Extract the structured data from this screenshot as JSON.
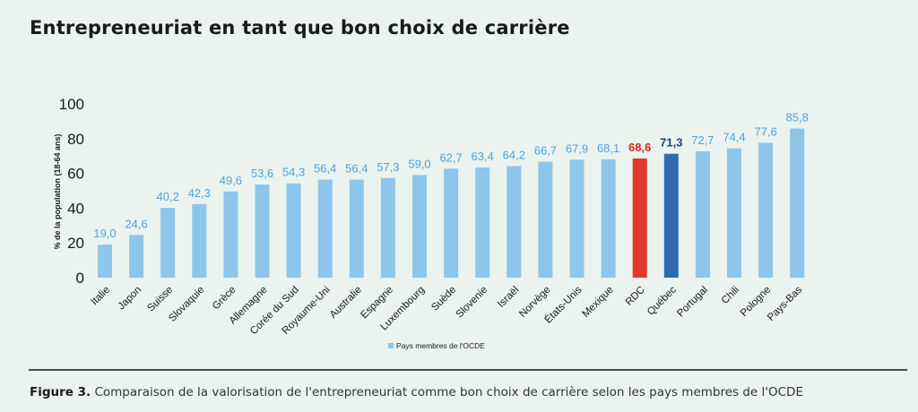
{
  "title": "Entrepreneuriat en tant que bon choix de carrière",
  "caption": {
    "label": "Figure 3.",
    "text": " Comparaison de la valorisation de l'entrepreneuriat comme bon choix de carrière selon les pays membres de l'OCDE"
  },
  "chart_data": {
    "type": "bar",
    "ylabel": "% de la population (18-64 ans)",
    "ylim": [
      0,
      100
    ],
    "yticks": [
      0,
      20,
      40,
      60,
      80,
      100
    ],
    "grid": false,
    "legend": {
      "position": "bottom-center",
      "label": "Pays membres de l'OCDE"
    },
    "categories": [
      "Italie",
      "Japon",
      "Suisse",
      "Slovaquie",
      "Grèce",
      "Allemagne",
      "Corée du Sud",
      "Royaume-Uni",
      "Australie",
      "Espagne",
      "Luxembourg",
      "Suède",
      "Slovenie",
      "Israël",
      "Norvège",
      "États-Unis",
      "Mexique",
      "RDC",
      "Québec",
      "Portugal",
      "Chili",
      "Pologne",
      "Pays-Bas"
    ],
    "values": [
      19.0,
      24.6,
      40.2,
      42.3,
      49.6,
      53.6,
      54.3,
      56.4,
      56.4,
      57.3,
      59.0,
      62.7,
      63.4,
      64.2,
      66.7,
      67.9,
      68.1,
      68.6,
      71.3,
      72.7,
      74.4,
      77.6,
      85.8
    ],
    "value_labels": [
      "19,0",
      "24,6",
      "40,2",
      "42,3",
      "49,6",
      "53,6",
      "54,3",
      "56,4",
      "56,4",
      "57,3",
      "59,0",
      "62,7",
      "63,4",
      "64,2",
      "66,7",
      "67,9",
      "68,1",
      "68,6",
      "71,3",
      "72,7",
      "74,4",
      "77,6",
      "85,8"
    ],
    "colors": {
      "default": "#8dc6ea",
      "default_label": "#4aa3df",
      "highlight": {
        "RDC": {
          "bar": "#e03a2f",
          "label": "#d42a1f"
        },
        "Québec": {
          "bar": "#2e6bb0",
          "label": "#1f3f7a"
        }
      }
    }
  }
}
